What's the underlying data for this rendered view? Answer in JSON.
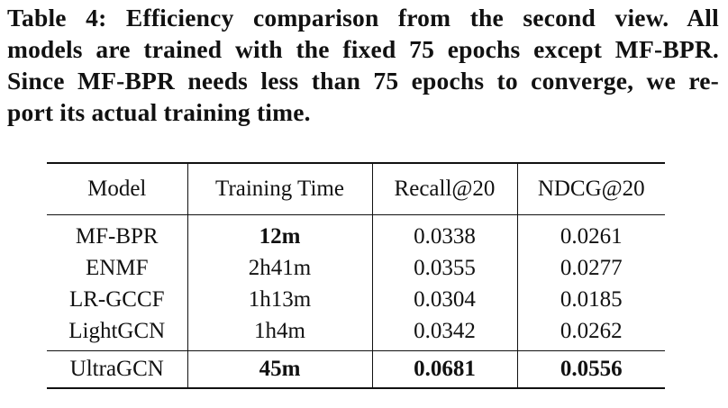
{
  "caption": {
    "lines": [
      "Table 4: Efficiency comparison from the second view. All",
      "models are trained with the fixed 75 epochs except MF-BPR.",
      "Since MF-BPR needs less than 75 epochs to converge, we re-",
      "port its actual training time."
    ]
  },
  "table": {
    "headers": [
      "Model",
      "Training Time",
      "Recall@20",
      "NDCG@20"
    ],
    "rows": [
      {
        "model": "MF-BPR",
        "time": "12m",
        "recall": "0.0338",
        "ndcg": "0.0261"
      },
      {
        "model": "ENMF",
        "time": "2h41m",
        "recall": "0.0355",
        "ndcg": "0.0277"
      },
      {
        "model": "LR-GCCF",
        "time": "1h13m",
        "recall": "0.0304",
        "ndcg": "0.0185"
      },
      {
        "model": "LightGCN",
        "time": "1h4m",
        "recall": "0.0342",
        "ndcg": "0.0262"
      },
      {
        "model": "UltraGCN",
        "time": "45m",
        "recall": "0.0681",
        "ndcg": "0.0556"
      }
    ]
  }
}
